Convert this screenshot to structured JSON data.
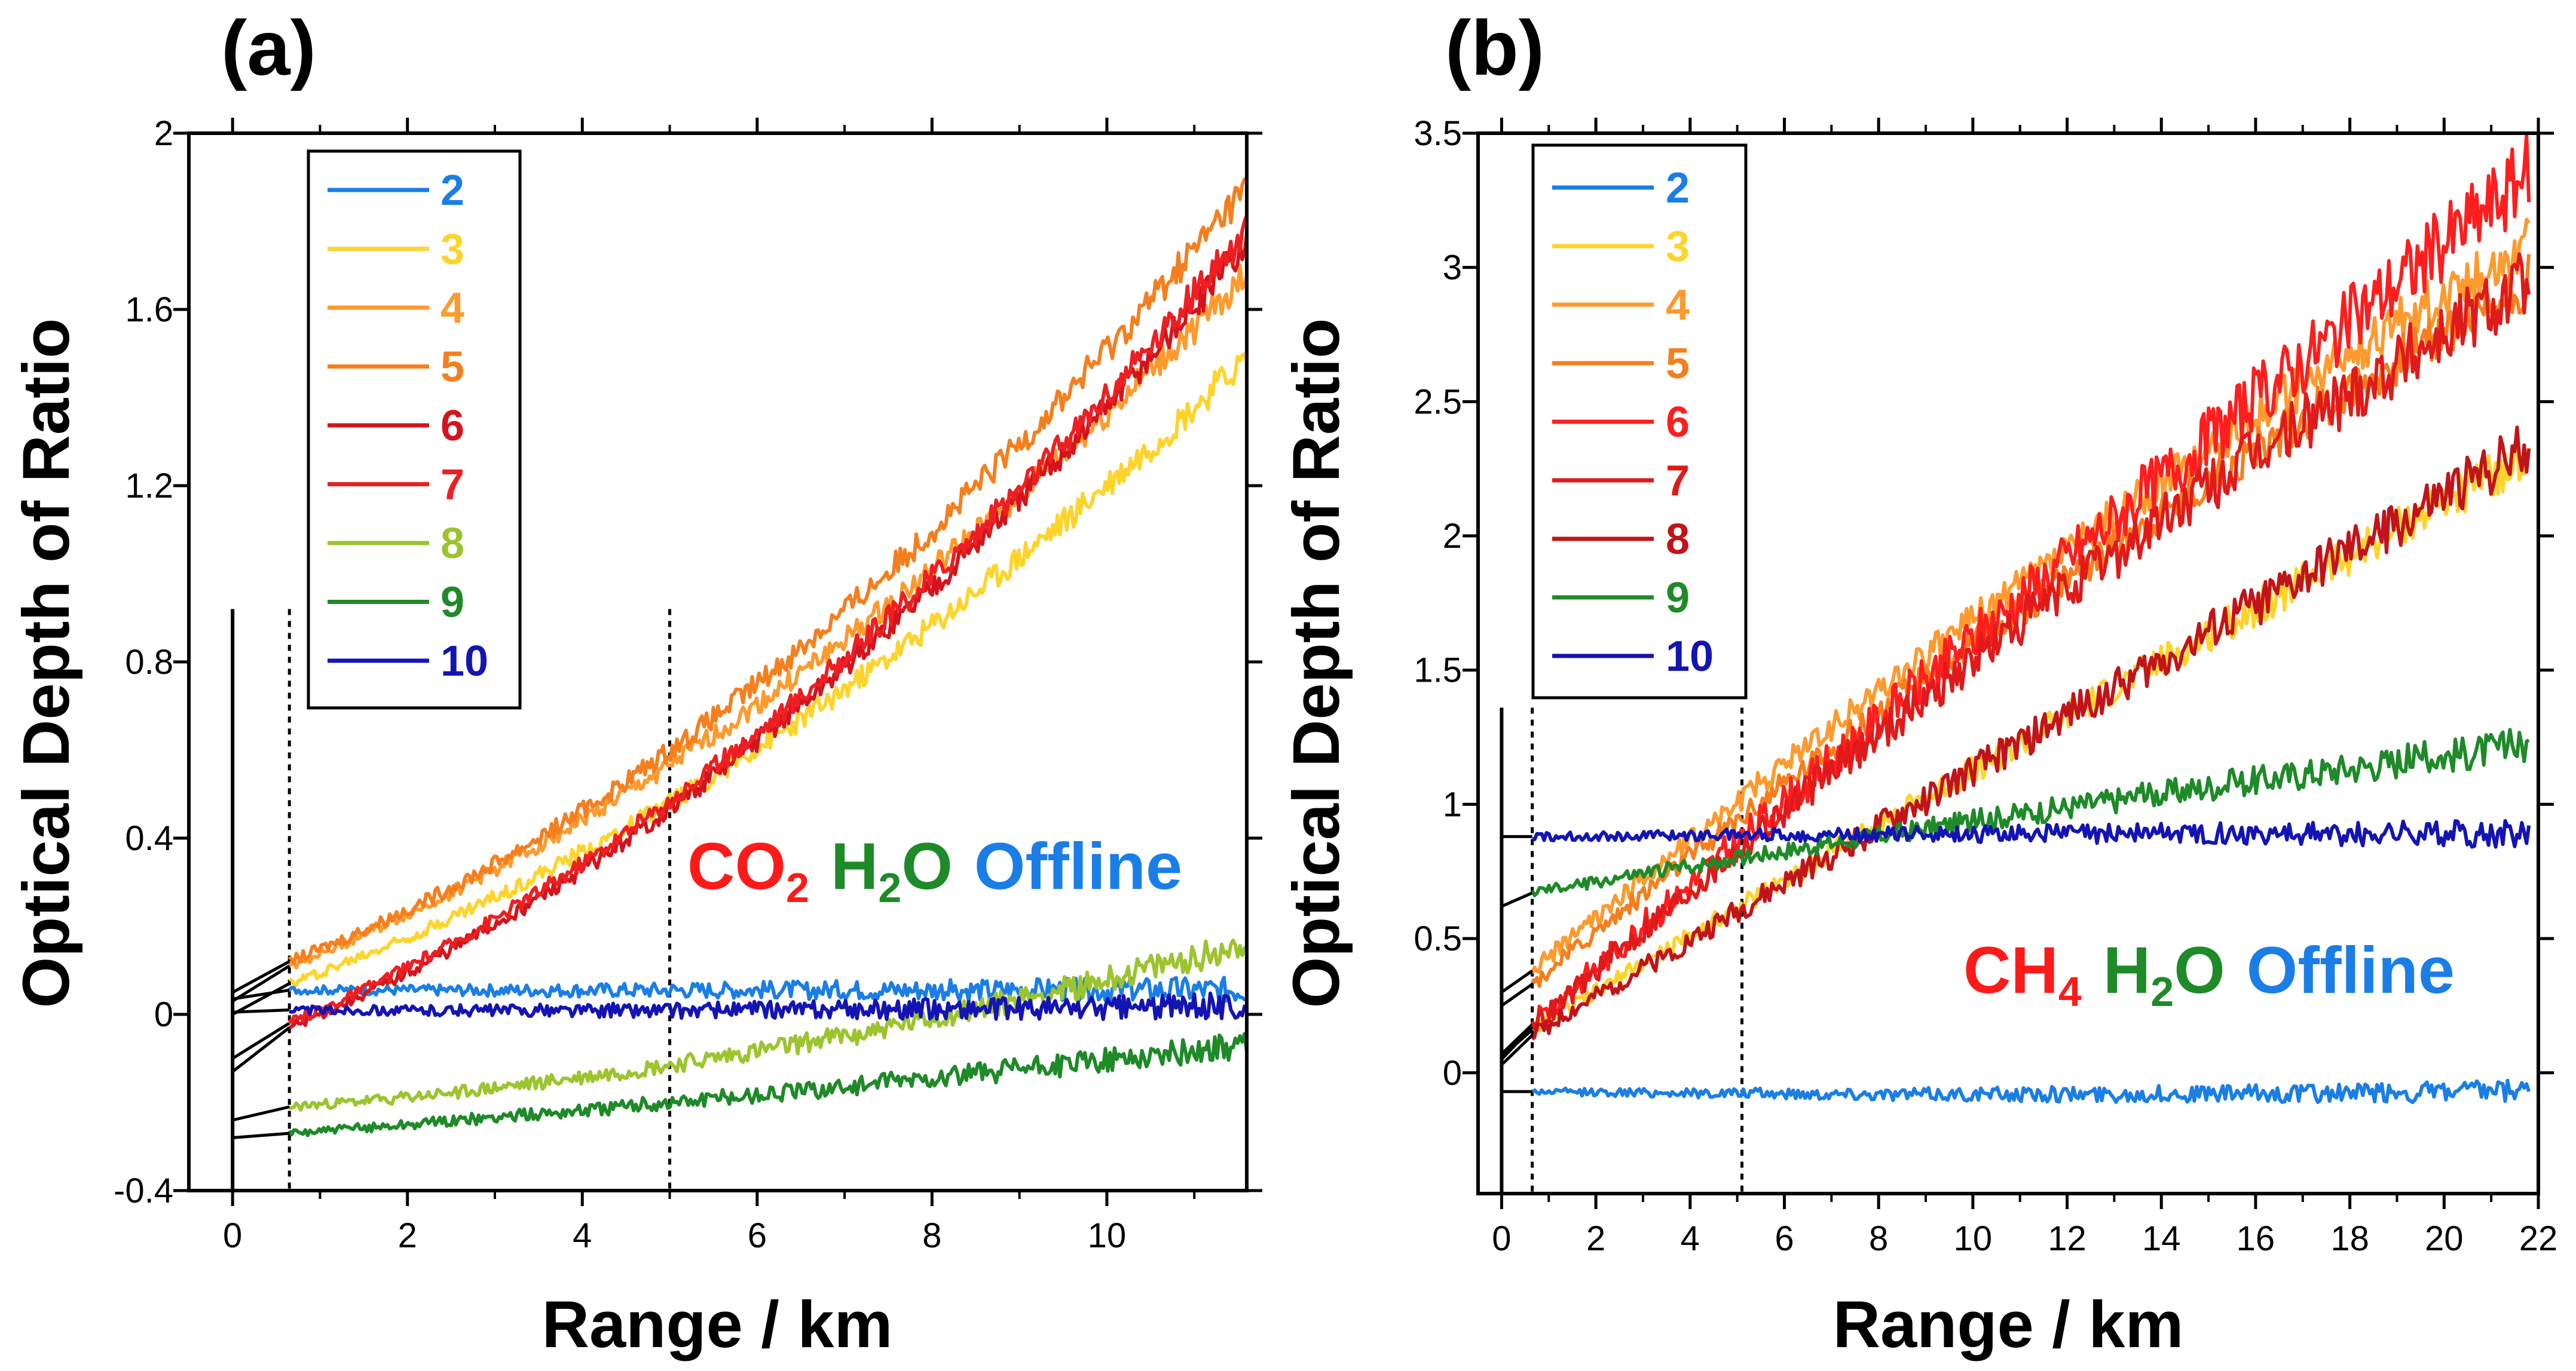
{
  "figure": {
    "panels": [
      {
        "panel_label": "(a)",
        "xlabel": "Range / km",
        "ylabel": "Optical Depth of Ratio",
        "annotation": {
          "species": "CO",
          "subscript": "2",
          "water": "H",
          "water_sub": "2",
          "water_tail": "O",
          "offline": "Offline"
        }
      },
      {
        "panel_label": "(b)",
        "xlabel": "Range / km",
        "ylabel": "Optical Depth of Ratio",
        "annotation": {
          "species": "CH",
          "subscript": "4",
          "water": "H",
          "water_sub": "2",
          "water_tail": "O",
          "offline": "Offline"
        }
      }
    ]
  },
  "chart_data": [
    {
      "type": "line",
      "title": "(a)",
      "xlabel": "Range / km",
      "ylabel": "Optical Depth of Ratio",
      "xlim": [
        -0.5,
        11.6
      ],
      "ylim": [
        -0.4,
        2.0
      ],
      "xticks": [
        0,
        2,
        4,
        6,
        8,
        10
      ],
      "xtick_labels": [
        "0",
        "2",
        "4",
        "6",
        "8",
        "10"
      ],
      "yticks": [
        -0.4,
        0,
        0.4,
        0.8,
        1.2,
        1.6,
        2.0
      ],
      "ytick_labels": [
        "-0.4",
        "0",
        "0.4",
        "0.8",
        "1.2",
        "1.6",
        "2"
      ],
      "vlines": [
        {
          "x": 0,
          "style": "solid",
          "y_top": 0.92
        },
        {
          "x": 0.65,
          "style": "dotted",
          "y_top": 0.92
        },
        {
          "x": 5.0,
          "style": "dotted",
          "y_top": 0.92
        }
      ],
      "legend_position": "top-left",
      "series": [
        {
          "name": "2",
          "color": "#1a7ee6",
          "x_start": 0.65,
          "x_end": 11.6,
          "values": [
            0.055,
            0.055,
            0.055
          ],
          "noise": 0.018,
          "extrap_to_zero": 0.035
        },
        {
          "name": "3",
          "color": "#ffd42a",
          "x_start": 0.65,
          "x_end": 11.6,
          "values": [
            0.07,
            0.62,
            1.49
          ],
          "noise": 0.022,
          "extrap_to_zero": 0.0
        },
        {
          "name": "4",
          "color": "#ff9a2e",
          "x_start": 0.65,
          "x_end": 11.6,
          "values": [
            0.11,
            0.72,
            1.68
          ],
          "noise": 0.022,
          "extrap_to_zero": 0.03
        },
        {
          "name": "5",
          "color": "#f57f1e",
          "x_start": 0.65,
          "x_end": 11.6,
          "values": [
            0.12,
            0.77,
            1.88
          ],
          "noise": 0.024,
          "extrap_to_zero": 0.05
        },
        {
          "name": "6",
          "color": "#d4141c",
          "x_start": 0.65,
          "x_end": 11.6,
          "values": [
            -0.03,
            0.64,
            1.75
          ],
          "noise": 0.022,
          "extrap_to_zero": -0.13
        },
        {
          "name": "7",
          "color": "#ee1f22",
          "x_start": 0.65,
          "x_end": 11.6,
          "values": [
            -0.02,
            0.66,
            1.78
          ],
          "noise": 0.022,
          "extrap_to_zero": -0.1
        },
        {
          "name": "8",
          "color": "#9cc42e",
          "x_start": 0.65,
          "x_end": 11.6,
          "values": [
            -0.21,
            -0.08,
            0.16
          ],
          "noise": 0.02,
          "extrap_to_zero": -0.24
        },
        {
          "name": "9",
          "color": "#1e8a28",
          "x_start": 0.65,
          "x_end": 11.6,
          "values": [
            -0.27,
            -0.18,
            -0.07
          ],
          "noise": 0.018,
          "extrap_to_zero": -0.28
        },
        {
          "name": "10",
          "color": "#1414b4",
          "x_start": 0.65,
          "x_end": 11.6,
          "values": [
            0.01,
            0.01,
            0.02
          ],
          "noise": 0.018,
          "extrap_to_zero": 0.005
        }
      ]
    },
    {
      "type": "line",
      "title": "(b)",
      "xlabel": "Range / km",
      "ylabel": "Optical Depth of Ratio",
      "xlim": [
        -0.5,
        22.0
      ],
      "ylim": [
        -0.45,
        3.5
      ],
      "xticks": [
        0,
        2,
        4,
        6,
        8,
        10,
        12,
        14,
        16,
        18,
        20,
        22
      ],
      "xtick_labels": [
        "0",
        "2",
        "4",
        "6",
        "8",
        "10",
        "12",
        "14",
        "16",
        "18",
        "20",
        "22"
      ],
      "yticks": [
        0,
        0.5,
        1,
        1.5,
        2,
        2.5,
        3,
        3.5
      ],
      "ytick_labels": [
        "0",
        "0.5",
        "1",
        "1.5",
        "2",
        "2.5",
        "3",
        "3.5"
      ],
      "vlines": [
        {
          "x": 0,
          "style": "solid",
          "y_top": 1.36
        },
        {
          "x": 0.65,
          "style": "dotted",
          "y_top": 1.36
        },
        {
          "x": 5.1,
          "style": "dotted",
          "y_top": 1.36
        }
      ],
      "legend_position": "top-left",
      "series": [
        {
          "name": "2",
          "color": "#1a7ee6",
          "x_start": 0.65,
          "x_end": 21.8,
          "values": [
            -0.07,
            -0.08,
            -0.07
          ],
          "noise": 0.025,
          "extrap_to_zero": -0.07
        },
        {
          "name": "3",
          "color": "#ffd42a",
          "x_start": 0.65,
          "x_end": 21.8,
          "values": [
            0.16,
            1.25,
            2.3
          ],
          "noise": 0.05,
          "extrap_to_zero": 0.06
        },
        {
          "name": "4",
          "color": "#ff9a2e",
          "x_start": 0.65,
          "x_end": 21.8,
          "values": [
            0.38,
            1.85,
            3.1
          ],
          "noise": 0.06,
          "extrap_to_zero": 0.3
        },
        {
          "name": "5",
          "color": "#f57f1e",
          "x_start": 0.65,
          "x_end": 21.8,
          "values": [
            0.33,
            1.75,
            2.95
          ],
          "noise": 0.06,
          "extrap_to_zero": 0.25
        },
        {
          "name": "6",
          "color": "#ff1e1e",
          "x_start": 0.65,
          "x_end": 21.8,
          "values": [
            0.18,
            1.8,
            3.35
          ],
          "noise": 0.09,
          "extrap_to_zero": 0.07
        },
        {
          "name": "7",
          "color": "#e01a1a",
          "x_start": 0.65,
          "x_end": 21.8,
          "values": [
            0.17,
            1.7,
            2.95
          ],
          "noise": 0.08,
          "extrap_to_zero": 0.05
        },
        {
          "name": "8",
          "color": "#c1141a",
          "x_start": 0.65,
          "x_end": 21.8,
          "values": [
            0.14,
            1.25,
            2.33
          ],
          "noise": 0.06,
          "extrap_to_zero": 0.03
        },
        {
          "name": "9",
          "color": "#1e8a28",
          "x_start": 0.65,
          "x_end": 21.8,
          "values": [
            0.67,
            0.97,
            1.22
          ],
          "noise": 0.04,
          "extrap_to_zero": 0.62
        },
        {
          "name": "10",
          "color": "#1414b4",
          "x_start": 0.65,
          "x_end": 21.8,
          "values": [
            0.88,
            0.89,
            0.89
          ],
          "noise": 0.03,
          "extrap_to_zero": 0.88
        }
      ]
    }
  ]
}
